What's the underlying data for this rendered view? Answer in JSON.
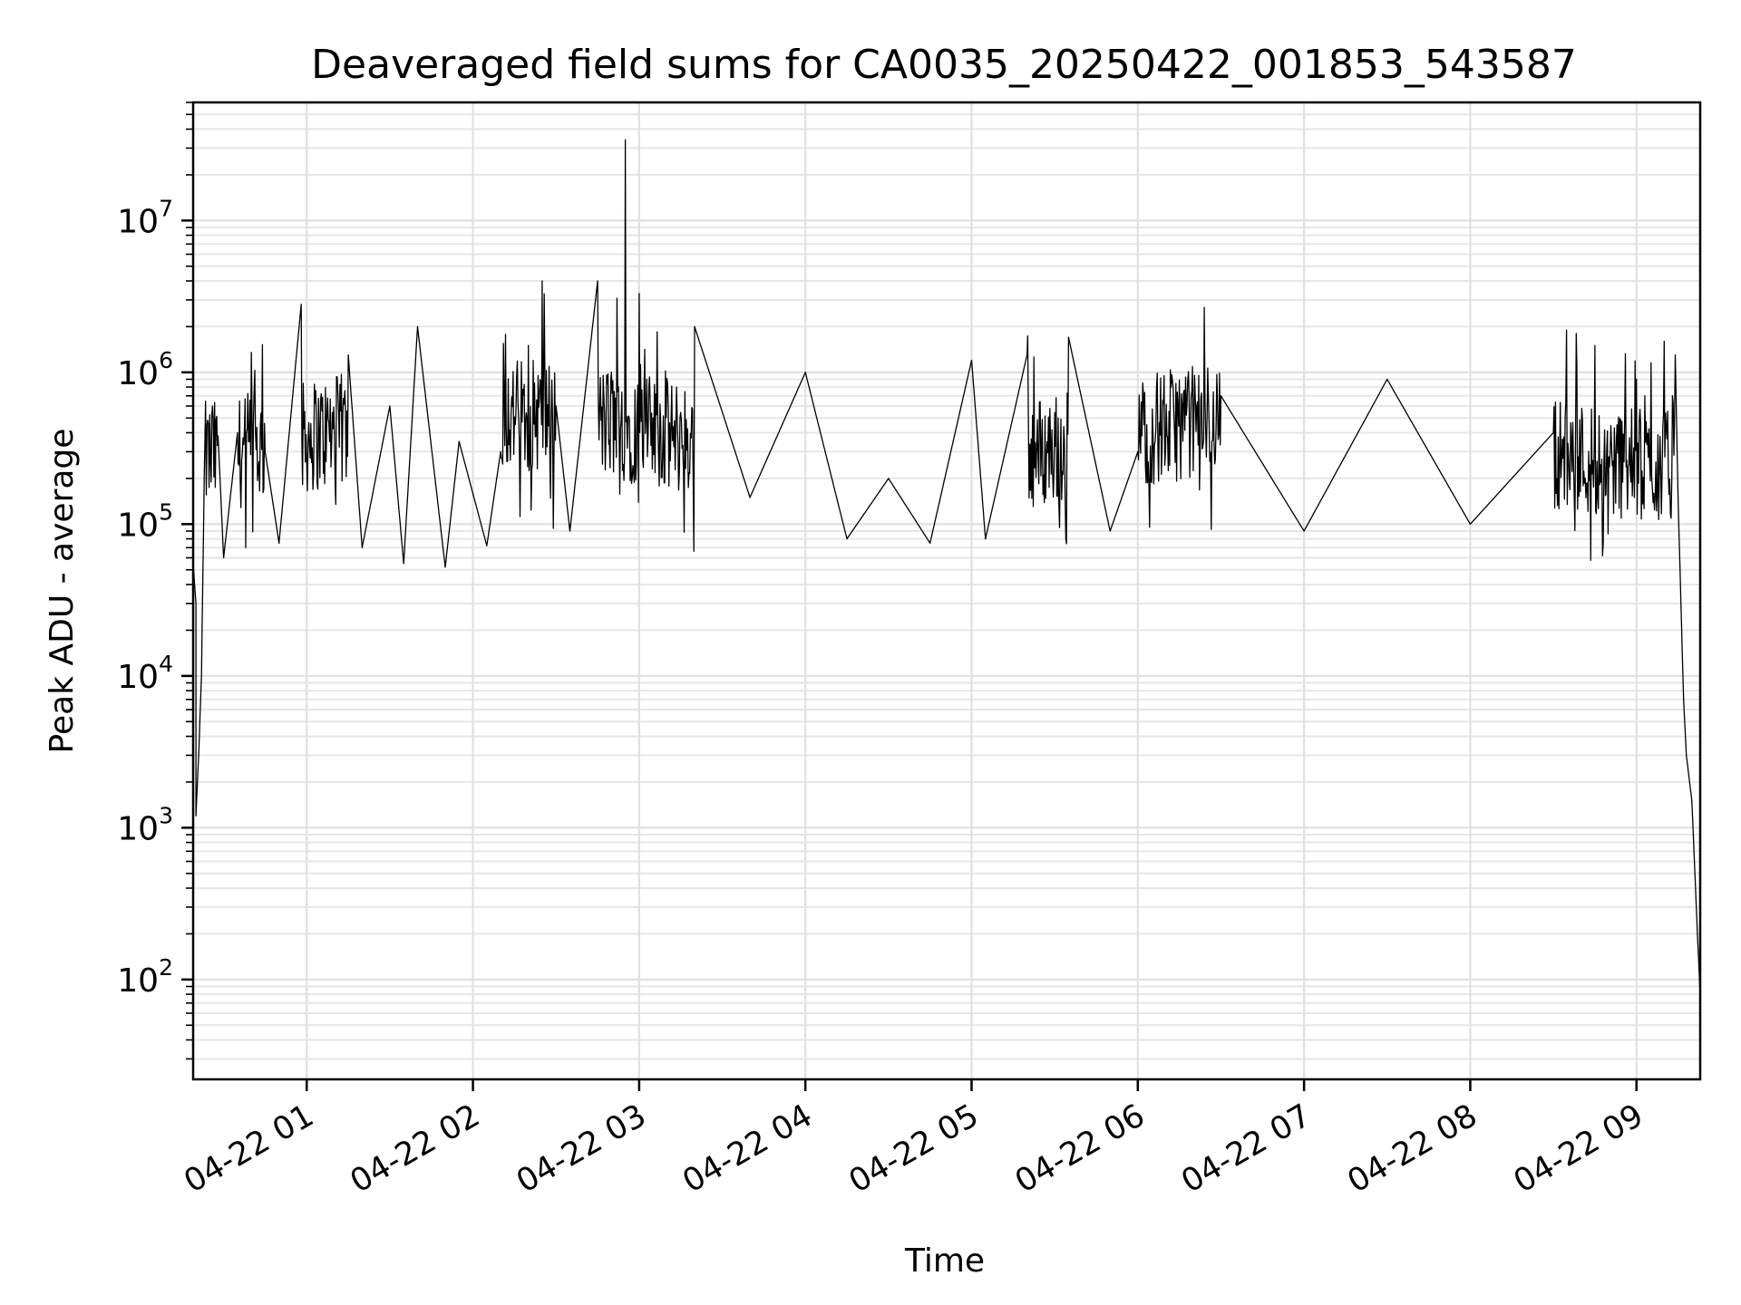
{
  "chart_data": {
    "type": "line",
    "title": "Deaveraged field sums for CA0035_20250422_001853_543587",
    "xlabel": "Time",
    "ylabel": "Peak ADU - average",
    "yscale": "log",
    "xlim": [
      "2025-04-22 00:19",
      "2025-04-22 09:23"
    ],
    "ylim": [
      22,
      60000000
    ],
    "grid": true,
    "legend": "none",
    "line_color": "#000000",
    "x_ticks": [
      "04-22 01",
      "04-22 02",
      "04-22 03",
      "04-22 04",
      "04-22 05",
      "04-22 06",
      "04-22 07",
      "04-22 08",
      "04-22 09"
    ],
    "y_ticks": [
      {
        "base": "10",
        "exp": "2",
        "value": 100
      },
      {
        "base": "10",
        "exp": "3",
        "value": 1000
      },
      {
        "base": "10",
        "exp": "4",
        "value": 10000
      },
      {
        "base": "10",
        "exp": "5",
        "value": 100000
      },
      {
        "base": "10",
        "exp": "6",
        "value": 1000000
      },
      {
        "base": "10",
        "exp": "7",
        "value": 10000000
      }
    ],
    "series": [
      {
        "points": [
          [
            "2025-04-22 00:19",
            15000
          ],
          [
            "2025-04-22 00:19",
            55000
          ],
          [
            "2025-04-22 00:20",
            30000
          ],
          [
            "2025-04-22 00:20",
            1200
          ],
          [
            "2025-04-22 00:21",
            3000
          ],
          [
            "2025-04-22 00:22",
            10000
          ],
          [
            "2025-04-22 00:23",
            200000
          ],
          [
            "2025-04-22 00:24",
            450000
          ],
          [
            "2025-04-22 00:26",
            600000
          ],
          [
            "2025-04-22 00:28",
            380000
          ],
          [
            "2025-04-22 00:30",
            60000
          ],
          [
            "2025-04-22 00:35",
            400000
          ],
          [
            "2025-04-22 00:40",
            1350000
          ],
          [
            "2025-04-22 00:45",
            300000
          ],
          [
            "2025-04-22 00:50",
            75000
          ],
          [
            "2025-04-22 00:58",
            2800000
          ],
          [
            "2025-04-22 01:10",
            400000
          ],
          [
            "2025-04-22 01:15",
            1300000
          ],
          [
            "2025-04-22 01:20",
            70000
          ],
          [
            "2025-04-22 01:30",
            600000
          ],
          [
            "2025-04-22 01:35",
            55000
          ],
          [
            "2025-04-22 01:40",
            2000000
          ],
          [
            "2025-04-22 01:50",
            52000
          ],
          [
            "2025-04-22 01:55",
            350000
          ],
          [
            "2025-04-22 02:05",
            72000
          ],
          [
            "2025-04-22 02:10",
            300000
          ],
          [
            "2025-04-22 02:20",
            1500000
          ],
          [
            "2025-04-22 02:25",
            4000000
          ],
          [
            "2025-04-22 02:30",
            600000
          ],
          [
            "2025-04-22 02:35",
            90000
          ],
          [
            "2025-04-22 02:45",
            4000000
          ],
          [
            "2025-04-22 02:50",
            1000000
          ],
          [
            "2025-04-22 02:55",
            34000000
          ],
          [
            "2025-04-22 03:00",
            3300000
          ],
          [
            "2025-04-22 03:05",
            500000
          ],
          [
            "2025-04-22 03:20",
            2000000
          ],
          [
            "2025-04-22 03:40",
            150000
          ],
          [
            "2025-04-22 04:00",
            1000000
          ],
          [
            "2025-04-22 04:15",
            80000
          ],
          [
            "2025-04-22 04:30",
            200000
          ],
          [
            "2025-04-22 04:45",
            75000
          ],
          [
            "2025-04-22 05:00",
            1200000
          ],
          [
            "2025-04-22 05:05",
            80000
          ],
          [
            "2025-04-22 05:20",
            1300000
          ],
          [
            "2025-04-22 05:35",
            1700000
          ],
          [
            "2025-04-22 05:50",
            90000
          ],
          [
            "2025-04-22 06:00",
            300000
          ],
          [
            "2025-04-22 06:30",
            700000
          ],
          [
            "2025-04-22 07:00",
            90000
          ],
          [
            "2025-04-22 07:30",
            900000
          ],
          [
            "2025-04-22 08:00",
            100000
          ],
          [
            "2025-04-22 08:30",
            400000
          ],
          [
            "2025-04-22 08:45",
            1500000
          ],
          [
            "2025-04-22 09:00",
            900000
          ],
          [
            "2025-04-22 09:10",
            1600000
          ],
          [
            "2025-04-22 09:13",
            700000
          ],
          [
            "2025-04-22 09:14",
            1300000
          ],
          [
            "2025-04-22 09:15",
            150000
          ],
          [
            "2025-04-22 09:17",
            7000
          ],
          [
            "2025-04-22 09:18",
            3000
          ],
          [
            "2025-04-22 09:20",
            1500
          ],
          [
            "2025-04-22 09:22",
            200
          ],
          [
            "2025-04-22 09:23",
            80
          ]
        ]
      }
    ]
  }
}
